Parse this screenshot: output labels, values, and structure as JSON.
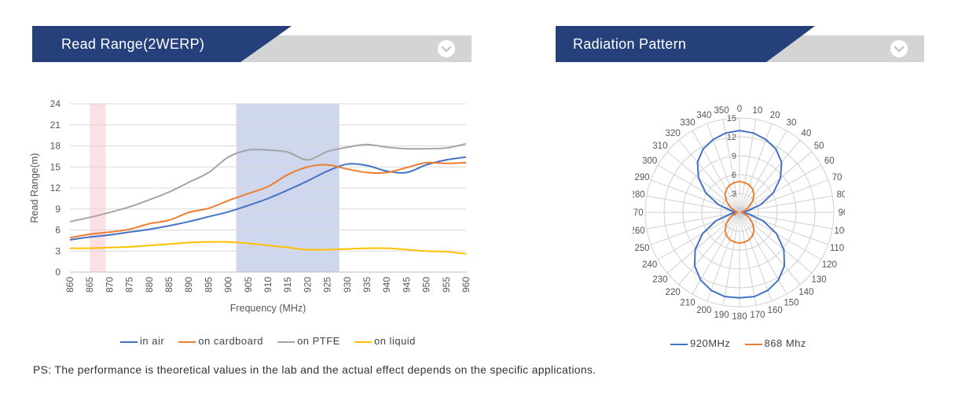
{
  "header_left": {
    "title": "Read Range(2WERP)"
  },
  "header_right": {
    "title": "Radiation Pattern"
  },
  "colors": {
    "banner_dark": "#26407b",
    "banner_light": "#d4d4d4",
    "highlight_blue": "#cfd7ee",
    "highlight_pink": "#fde0e4"
  },
  "chart_data": [
    {
      "type": "line",
      "title": "",
      "xlabel": "Frequency (MHz)",
      "ylabel": "Read Range(m)",
      "xlim": [
        860,
        960
      ],
      "ylim": [
        0,
        24
      ],
      "x_ticks": [
        "860",
        "865",
        "870",
        "875",
        "880",
        "885",
        "890",
        "895",
        "900",
        "905",
        "910",
        "915",
        "920",
        "925",
        "930",
        "935",
        "940",
        "945",
        "950",
        "955",
        "960"
      ],
      "y_ticks": [
        "0",
        "3",
        "6",
        "9",
        "12",
        "15",
        "18",
        "21",
        "24"
      ],
      "grid": true,
      "legend_position": "bottom",
      "shaded_bands": [
        {
          "from": 865,
          "to": 869,
          "color": "#fde0e4"
        },
        {
          "from": 902,
          "to": 928,
          "color": "#cfd7ee"
        }
      ],
      "x": [
        860,
        865,
        870,
        875,
        880,
        885,
        890,
        895,
        900,
        905,
        910,
        915,
        920,
        925,
        930,
        935,
        940,
        945,
        950,
        955,
        960
      ],
      "series": [
        {
          "name": "in air",
          "color": "#4472c4",
          "values": [
            4.6,
            5.0,
            5.3,
            5.7,
            6.1,
            6.6,
            7.2,
            7.9,
            8.6,
            9.5,
            10.5,
            11.7,
            13.0,
            14.4,
            15.4,
            15.2,
            14.4,
            14.2,
            15.3,
            16.0,
            16.4
          ]
        },
        {
          "name": "on cardboard",
          "color": "#ed7d31",
          "values": [
            4.9,
            5.4,
            5.7,
            6.1,
            6.9,
            7.4,
            8.5,
            9.1,
            10.2,
            11.2,
            12.2,
            13.9,
            15.0,
            15.3,
            14.7,
            14.2,
            14.2,
            14.9,
            15.6,
            15.5,
            15.6
          ]
        },
        {
          "name": "on PTFE",
          "color": "#a5a5a5",
          "values": [
            7.2,
            7.8,
            8.5,
            9.3,
            10.3,
            11.4,
            12.8,
            14.2,
            16.4,
            17.4,
            17.4,
            17.1,
            16.0,
            17.2,
            17.8,
            18.2,
            17.8,
            17.6,
            17.6,
            17.7,
            18.3
          ]
        },
        {
          "name": "on liquid",
          "color": "#ffc000",
          "values": [
            3.4,
            3.4,
            3.5,
            3.6,
            3.8,
            4.0,
            4.2,
            4.3,
            4.3,
            4.1,
            3.8,
            3.5,
            3.2,
            3.2,
            3.3,
            3.4,
            3.4,
            3.2,
            3.0,
            2.9,
            2.6
          ]
        }
      ]
    },
    {
      "type": "line",
      "subtype": "polar",
      "title": "",
      "r_range": [
        0,
        15
      ],
      "r_ticks": [
        "0",
        "3",
        "6",
        "9",
        "12",
        "15"
      ],
      "angle_ticks": [
        "0",
        "10",
        "20",
        "30",
        "40",
        "50",
        "60",
        "70",
        "80",
        "90",
        "100",
        "110",
        "120",
        "130",
        "140",
        "150",
        "160",
        "170",
        "180",
        "190",
        "200",
        "210",
        "220",
        "230",
        "240",
        "250",
        "260",
        "270",
        "280",
        "290",
        "300",
        "310",
        "320",
        "330",
        "340",
        "350"
      ],
      "legend_position": "bottom",
      "angles": [
        0,
        10,
        20,
        30,
        40,
        50,
        60,
        70,
        80,
        90,
        100,
        110,
        120,
        130,
        140,
        150,
        160,
        170,
        180,
        190,
        200,
        210,
        220,
        230,
        240,
        250,
        260,
        270,
        280,
        290,
        300,
        310,
        320,
        330,
        340,
        350
      ],
      "series": [
        {
          "name": "920MHz",
          "color": "#4472c4",
          "values": [
            13,
            12.8,
            12.3,
            11.6,
            10.4,
            8.5,
            6.2,
            3.6,
            1.3,
            0.3,
            1.5,
            4.0,
            6.8,
            9.2,
            11.1,
            12.4,
            13.2,
            13.6,
            13.6,
            13.6,
            13.2,
            12.4,
            11.1,
            9.2,
            6.8,
            4.0,
            1.5,
            0.3,
            1.3,
            3.6,
            6.2,
            8.5,
            10.4,
            11.6,
            12.3,
            12.8
          ]
        },
        {
          "name": "868 Mhz",
          "color": "#ed7d31",
          "values": [
            4.9,
            4.8,
            4.6,
            4.2,
            3.6,
            2.7,
            1.7,
            0.9,
            0.4,
            0.3,
            0.5,
            1.0,
            1.8,
            2.7,
            3.6,
            4.2,
            4.6,
            4.8,
            4.9,
            4.8,
            4.6,
            4.2,
            3.6,
            2.7,
            1.8,
            1.0,
            0.5,
            0.3,
            0.4,
            0.9,
            1.7,
            2.7,
            3.6,
            4.2,
            4.6,
            4.8
          ]
        }
      ]
    }
  ],
  "footnote": "PS: The performance is theoretical values in the lab and the actual effect depends on the specific applications."
}
